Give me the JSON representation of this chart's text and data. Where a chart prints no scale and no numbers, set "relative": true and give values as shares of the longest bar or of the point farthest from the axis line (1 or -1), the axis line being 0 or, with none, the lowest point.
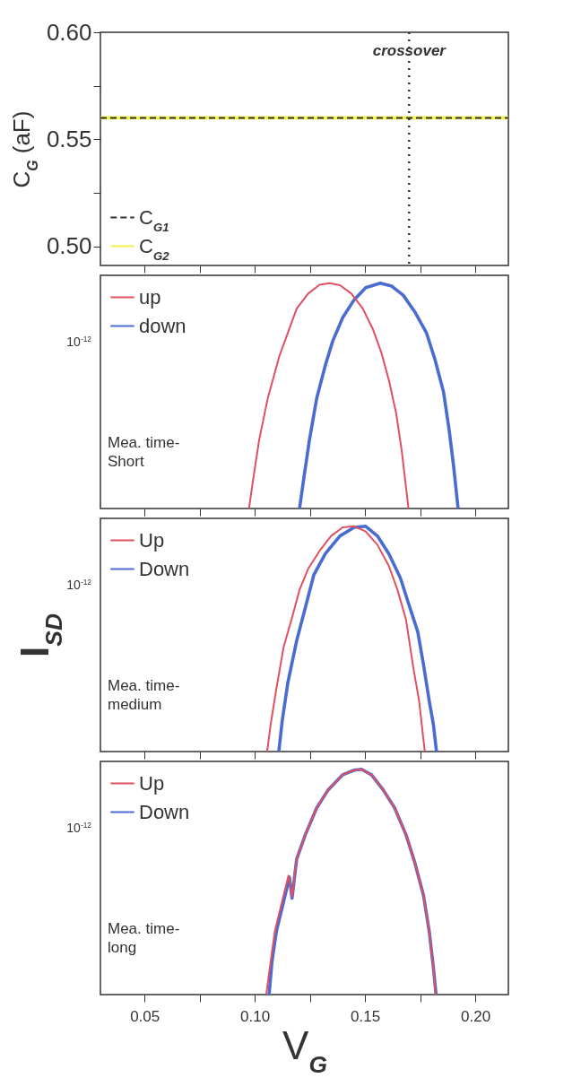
{
  "chart_data": [
    {
      "type": "line",
      "ylabel": "C$_{G}$ (aF)",
      "xlim": [
        0.03,
        0.215
      ],
      "ylim": [
        0.491,
        0.6
      ],
      "xticks": [
        {
          "value": 0.05,
          "label": null
        },
        {
          "value": 0.075,
          "label": null
        },
        {
          "value": 0.1,
          "label": null
        },
        {
          "value": 0.125,
          "label": null
        },
        {
          "value": 0.15,
          "label": null
        },
        {
          "value": 0.175,
          "label": null
        },
        {
          "value": 0.2,
          "label": null
        }
      ],
      "yticks": [
        {
          "value": 0.5,
          "label": "0.50"
        },
        {
          "value": 0.525,
          "label": null
        },
        0.55,
        {
          "value": 0.575,
          "label": null
        },
        {
          "value": 0.6,
          "label": "0.60"
        }
      ],
      "tick_labels": "y",
      "legend": "bottom left",
      "series": [
        {
          "name": "C$_{G1}$",
          "color": "#333333",
          "line_style": "dashed",
          "x": [
            0.03,
            0.215
          ],
          "values": [
            0.56,
            0.56
          ]
        },
        {
          "name": "C$_{G2}$",
          "color": "#f2f04a",
          "x": [
            0.03,
            0.215
          ],
          "values": [
            0.56,
            0.56
          ]
        }
      ],
      "ref_lines": [
        {
          "axis": "x",
          "value": 0.17,
          "label": "crossover",
          "line_style": "dotted",
          "color": "#333333"
        }
      ]
    },
    {
      "type": "line",
      "relative": true,
      "xlim": [
        0.03,
        0.215
      ],
      "xticks": [
        {
          "value": 0.05,
          "label": null
        },
        {
          "value": 0.075,
          "label": null
        },
        {
          "value": 0.1,
          "label": null
        },
        {
          "value": 0.125,
          "label": null
        },
        {
          "value": 0.15,
          "label": null
        },
        {
          "value": 0.175,
          "label": null
        },
        {
          "value": 0.2,
          "label": null
        }
      ],
      "tick_labels": false,
      "legend": "top left",
      "annotations": [
        "10$^{-12}$",
        "Mea. time-\nShort"
      ],
      "series": [
        {
          "name": "up",
          "color": "#e05060",
          "x": [
            0.0974,
            0.0991,
            0.102,
            0.1059,
            0.1111,
            0.119,
            0.1242,
            0.1294,
            0.134,
            0.1386,
            0.1438,
            0.149,
            0.1536,
            0.1575,
            0.1608,
            0.1641,
            0.1667,
            0.1686,
            0.1697
          ],
          "values": [
            0,
            0.119,
            0.305,
            0.49,
            0.675,
            0.887,
            0.954,
            0.993,
            1.0,
            0.991,
            0.954,
            0.887,
            0.795,
            0.689,
            0.57,
            0.424,
            0.252,
            0.093,
            0
          ]
        },
        {
          "name": "down",
          "color": "#4a6cd0",
          "x": [
            0.1203,
            0.1222,
            0.1248,
            0.1281,
            0.132,
            0.1353,
            0.1399,
            0.1451,
            0.1503,
            0.1569,
            0.1621,
            0.1673,
            0.1725,
            0.1778,
            0.1817,
            0.1856,
            0.1882,
            0.1902,
            0.1922
          ],
          "values": [
            0,
            0.132,
            0.305,
            0.49,
            0.636,
            0.742,
            0.848,
            0.927,
            0.98,
            1.0,
            0.987,
            0.947,
            0.874,
            0.781,
            0.662,
            0.517,
            0.344,
            0.185,
            0
          ]
        }
      ]
    },
    {
      "type": "line",
      "relative": true,
      "ylabel": "I$_{SD}$",
      "xlim": [
        0.03,
        0.215
      ],
      "xticks": [
        {
          "value": 0.05,
          "label": null
        },
        {
          "value": 0.075,
          "label": null
        },
        {
          "value": 0.1,
          "label": null
        },
        {
          "value": 0.125,
          "label": null
        },
        {
          "value": 0.15,
          "label": null
        },
        {
          "value": 0.175,
          "label": null
        },
        {
          "value": 0.2,
          "label": null
        }
      ],
      "tick_labels": false,
      "legend": "top left",
      "annotations": [
        "10$^{-12}$",
        "Mea. time-\nmedium"
      ],
      "series": [
        {
          "name": "Up",
          "color": "#e05060",
          "x": [
            0.1056,
            0.1072,
            0.1098,
            0.1131,
            0.117,
            0.1203,
            0.1242,
            0.1294,
            0.1346,
            0.1399,
            0.1451,
            0.1503,
            0.1556,
            0.1608,
            0.1647,
            0.1686,
            0.1719,
            0.1745,
            0.1771
          ],
          "values": [
            0,
            0.12,
            0.279,
            0.465,
            0.598,
            0.718,
            0.811,
            0.891,
            0.957,
            0.995,
            1.0,
            0.977,
            0.918,
            0.824,
            0.718,
            0.585,
            0.372,
            0.226,
            0
          ]
        },
        {
          "name": "Down",
          "color": "#4a6cd0",
          "x": [
            0.1109,
            0.1124,
            0.115,
            0.119,
            0.1229,
            0.1268,
            0.132,
            0.1386,
            0.1451,
            0.1503,
            0.1556,
            0.1608,
            0.166,
            0.1699,
            0.1739,
            0.1765,
            0.1791,
            0.181,
            0.1824
          ],
          "values": [
            0,
            0.133,
            0.306,
            0.492,
            0.638,
            0.785,
            0.878,
            0.957,
            0.995,
            1.0,
            0.957,
            0.878,
            0.771,
            0.652,
            0.532,
            0.386,
            0.226,
            0.12,
            0
          ]
        }
      ]
    },
    {
      "type": "line",
      "relative": true,
      "xlabel": "V$_{G}$",
      "xlim": [
        0.03,
        0.215
      ],
      "xticks": [
        {
          "value": 0.05,
          "label": "0.05"
        },
        {
          "value": 0.075,
          "label": null
        },
        {
          "value": 0.1,
          "label": "0.10"
        },
        {
          "value": 0.125,
          "label": null
        },
        {
          "value": 0.15,
          "label": "0.15"
        },
        {
          "value": 0.175,
          "label": null
        },
        {
          "value": 0.2,
          "label": "0.20"
        }
      ],
      "tick_labels": "x",
      "legend": "top left",
      "annotations": [
        "10$^{-12}$",
        "Mea. time-\nlong"
      ],
      "series": [
        {
          "name": "Up",
          "color": "#e05060",
          "x": [
            0.1052,
            0.1072,
            0.1091,
            0.1124,
            0.1153,
            0.1169,
            0.119,
            0.1229,
            0.1281,
            0.1333,
            0.1399,
            0.1451,
            0.1484,
            0.1529,
            0.1582,
            0.1634,
            0.1686,
            0.1725,
            0.1765,
            0.1791,
            0.181,
            0.182
          ],
          "values": [
            0,
            0.147,
            0.281,
            0.414,
            0.528,
            0.434,
            0.602,
            0.709,
            0.829,
            0.909,
            0.976,
            0.996,
            1.0,
            0.976,
            0.909,
            0.829,
            0.709,
            0.588,
            0.441,
            0.281,
            0.12,
            0
          ]
        },
        {
          "name": "Down",
          "color": "#4a6cd0",
          "x": [
            0.1065,
            0.1078,
            0.1098,
            0.1131,
            0.1157,
            0.1169,
            0.119,
            0.1229,
            0.1281,
            0.1333,
            0.1399,
            0.1451,
            0.1484,
            0.1529,
            0.1582,
            0.1634,
            0.1686,
            0.1725,
            0.1765,
            0.1791,
            0.181,
            0.1822
          ],
          "values": [
            0,
            0.147,
            0.281,
            0.414,
            0.521,
            0.428,
            0.602,
            0.709,
            0.829,
            0.909,
            0.976,
            0.996,
            1.0,
            0.976,
            0.909,
            0.829,
            0.709,
            0.588,
            0.441,
            0.281,
            0.12,
            0
          ]
        }
      ]
    }
  ]
}
